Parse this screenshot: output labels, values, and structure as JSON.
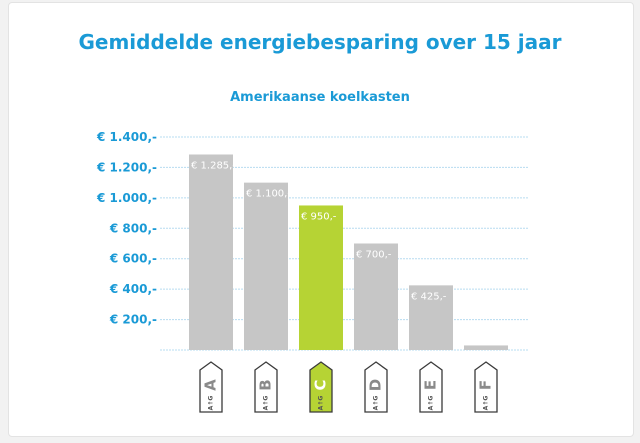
{
  "title": "Gemiddelde energiebesparing over 15 jaar",
  "subtitle": "Amerikaanse koelkasten",
  "colors": {
    "accent": "#1a9ad6",
    "bar_default": "#c6c6c6",
    "bar_highlight": "#b6d334",
    "grid": "#b7dcf0",
    "label_box": "#3a3a3a"
  },
  "label_sublabel": [
    "A",
    "G"
  ],
  "chart_data": {
    "type": "bar",
    "title": "Gemiddelde energiebesparing over 15 jaar",
    "subtitle": "Amerikaanse koelkasten",
    "xlabel": "",
    "ylabel": "",
    "ylim": [
      0,
      1400
    ],
    "yticks": [
      200,
      400,
      600,
      800,
      1000,
      1200,
      1400
    ],
    "ytick_labels": [
      "€ 200,-",
      "€ 400,-",
      "€ 600,-",
      "€ 800,-",
      "€ 1.000,-",
      "€ 1.200,-",
      "€ 1.400,-"
    ],
    "grid": true,
    "categories": [
      "A",
      "B",
      "C",
      "D",
      "E",
      "F"
    ],
    "values": [
      1285,
      1100,
      950,
      700,
      425,
      30
    ],
    "data_labels": [
      "€ 1.285,-",
      "€ 1.100,-",
      "€ 950,-",
      "€ 700,-",
      "€ 425,-",
      ""
    ],
    "highlight": "C"
  }
}
